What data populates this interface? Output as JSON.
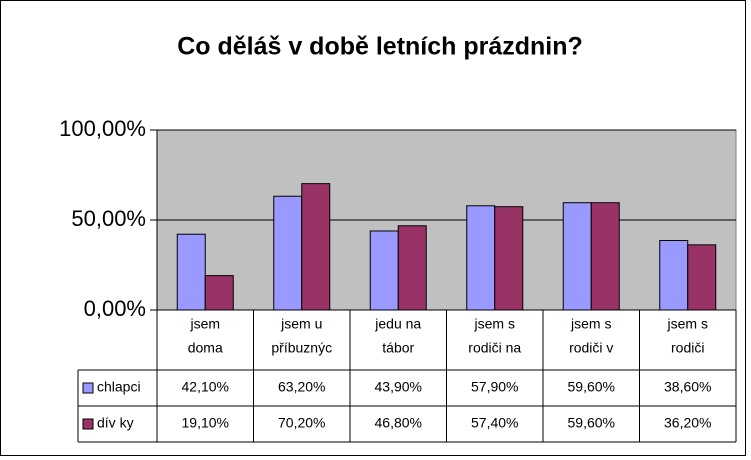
{
  "chart_data": {
    "type": "bar",
    "title": "Co děláš v době letních prázdnin?",
    "categories": [
      [
        "jsem",
        "doma"
      ],
      [
        "jsem u",
        "příbuznýc"
      ],
      [
        "jedu na",
        "tábor"
      ],
      [
        "jsem s",
        "rodiči na"
      ],
      [
        "jsem s",
        "rodiči v"
      ],
      [
        "jsem s",
        "rodiči"
      ]
    ],
    "series": [
      {
        "name": "chlapci",
        "color": "#9999ff",
        "values": [
          42.1,
          63.2,
          43.9,
          57.9,
          59.6,
          38.6
        ],
        "value_labels": [
          "42,10%",
          "63,20%",
          "43,90%",
          "57,90%",
          "59,60%",
          "38,60%"
        ]
      },
      {
        "name": "dív ky",
        "color": "#993366",
        "values": [
          19.1,
          70.2,
          46.8,
          57.4,
          59.6,
          36.2
        ],
        "value_labels": [
          "19,10%",
          "70,20%",
          "46,80%",
          "57,40%",
          "59,60%",
          "36,20%"
        ]
      }
    ],
    "ylim": [
      0,
      100
    ],
    "yticks": [
      {
        "value": 0,
        "label": "0,00%"
      },
      {
        "value": 50,
        "label": "50,00%"
      },
      {
        "value": 100,
        "label": "100,00%"
      }
    ],
    "grid": true,
    "plot_background": "#c0c0c0"
  }
}
